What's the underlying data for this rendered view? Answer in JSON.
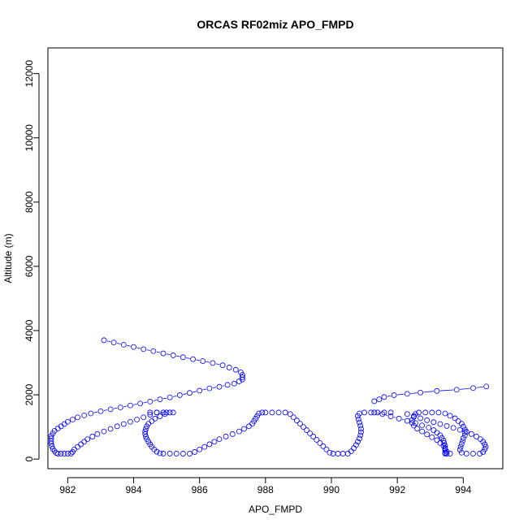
{
  "chart_data": {
    "type": "scatter",
    "title": "ORCAS RF02miz APO_FMPD",
    "xlabel": "APO_FMPD",
    "ylabel": "Altitude (m)",
    "xlim": [
      981.4,
      995.2
    ],
    "ylim": [
      -300,
      12800
    ],
    "x_ticks": [
      {
        "value": 982,
        "label": "982"
      },
      {
        "value": 984,
        "label": "984"
      },
      {
        "value": 986,
        "label": "986"
      },
      {
        "value": 988,
        "label": "988"
      },
      {
        "value": 990,
        "label": "990"
      },
      {
        "value": 992,
        "label": "992"
      },
      {
        "value": 994,
        "label": "994"
      }
    ],
    "y_ticks": [
      {
        "value": 0,
        "label": "0"
      },
      {
        "value": 2000,
        "label": "2000"
      },
      {
        "value": 4000,
        "label": "4000"
      },
      {
        "value": 6000,
        "label": "6000"
      },
      {
        "value": 8000,
        "label": "8000"
      },
      {
        "value": 10000,
        "label": "10000"
      },
      {
        "value": 12000,
        "label": "12000"
      }
    ],
    "grid": false,
    "marker": "open-circle",
    "color": "#0000ff",
    "series_segments": [
      {
        "points": [
          [
            983.1,
            3700
          ],
          [
            983.4,
            3630
          ],
          [
            983.7,
            3560
          ],
          [
            984.0,
            3490
          ],
          [
            984.3,
            3420
          ],
          [
            984.6,
            3360
          ],
          [
            984.9,
            3290
          ],
          [
            985.2,
            3230
          ],
          [
            985.5,
            3170
          ],
          [
            985.8,
            3110
          ],
          [
            986.1,
            3050
          ],
          [
            986.4,
            2990
          ],
          [
            986.7,
            2920
          ],
          [
            986.9,
            2850
          ],
          [
            987.1,
            2780
          ],
          [
            987.25,
            2700
          ],
          [
            987.3,
            2620
          ],
          [
            987.3,
            2550
          ],
          [
            987.3,
            2480
          ],
          [
            987.2,
            2420
          ],
          [
            987.05,
            2350
          ],
          [
            986.85,
            2310
          ],
          [
            986.6,
            2250
          ],
          [
            986.3,
            2200
          ],
          [
            986.0,
            2130
          ],
          [
            985.7,
            2060
          ],
          [
            985.4,
            1990
          ],
          [
            985.1,
            1920
          ],
          [
            984.8,
            1860
          ],
          [
            984.5,
            1790
          ],
          [
            984.2,
            1730
          ],
          [
            983.9,
            1670
          ],
          [
            983.6,
            1610
          ],
          [
            983.3,
            1550
          ],
          [
            983.0,
            1490
          ],
          [
            982.7,
            1420
          ],
          [
            982.5,
            1360
          ],
          [
            982.3,
            1300
          ],
          [
            982.15,
            1230
          ],
          [
            982.0,
            1160
          ],
          [
            981.9,
            1090
          ],
          [
            981.8,
            1020
          ],
          [
            981.7,
            950
          ],
          [
            981.6,
            880
          ],
          [
            981.55,
            800
          ],
          [
            981.5,
            720
          ],
          [
            981.5,
            640
          ],
          [
            981.5,
            560
          ],
          [
            981.5,
            480
          ],
          [
            981.52,
            400
          ],
          [
            981.55,
            320
          ],
          [
            981.6,
            250
          ],
          [
            981.65,
            190
          ],
          [
            981.7,
            170
          ],
          [
            981.8,
            170
          ],
          [
            981.9,
            170
          ],
          [
            982.0,
            170
          ],
          [
            982.1,
            170
          ],
          [
            982.15,
            220
          ],
          [
            982.2,
            300
          ],
          [
            982.3,
            380
          ],
          [
            982.4,
            460
          ],
          [
            982.5,
            540
          ],
          [
            982.6,
            620
          ],
          [
            982.75,
            700
          ],
          [
            982.9,
            780
          ],
          [
            983.1,
            860
          ],
          [
            983.3,
            940
          ],
          [
            983.5,
            1020
          ],
          [
            983.7,
            1090
          ],
          [
            983.9,
            1160
          ],
          [
            984.1,
            1230
          ],
          [
            984.3,
            1300
          ],
          [
            984.5,
            1380
          ],
          [
            984.7,
            1450
          ],
          [
            985.0,
            1450
          ],
          [
            985.2,
            1450
          ]
        ]
      },
      {
        "points": [
          [
            984.5,
            1450
          ],
          [
            984.7,
            1450
          ],
          [
            984.9,
            1450
          ],
          [
            985.1,
            1450
          ],
          [
            984.95,
            1400
          ],
          [
            984.8,
            1330
          ],
          [
            984.65,
            1260
          ],
          [
            984.55,
            1180
          ],
          [
            984.45,
            1100
          ],
          [
            984.4,
            1020
          ],
          [
            984.37,
            940
          ],
          [
            984.35,
            860
          ],
          [
            984.35,
            780
          ],
          [
            984.37,
            700
          ],
          [
            984.4,
            620
          ],
          [
            984.45,
            540
          ],
          [
            984.5,
            460
          ],
          [
            984.55,
            380
          ],
          [
            984.62,
            300
          ],
          [
            984.7,
            230
          ],
          [
            984.8,
            180
          ],
          [
            984.9,
            170
          ],
          [
            985.1,
            170
          ],
          [
            985.3,
            170
          ],
          [
            985.5,
            170
          ],
          [
            985.7,
            170
          ],
          [
            985.85,
            220
          ],
          [
            986.0,
            300
          ],
          [
            986.15,
            380
          ],
          [
            986.3,
            460
          ],
          [
            986.45,
            540
          ],
          [
            986.6,
            620
          ],
          [
            986.8,
            700
          ],
          [
            987.0,
            780
          ],
          [
            987.2,
            860
          ],
          [
            987.35,
            940
          ],
          [
            987.5,
            1020
          ],
          [
            987.6,
            1100
          ],
          [
            987.65,
            1180
          ],
          [
            987.7,
            1260
          ],
          [
            987.75,
            1340
          ],
          [
            987.8,
            1420
          ],
          [
            987.9,
            1450
          ],
          [
            988.0,
            1450
          ],
          [
            988.2,
            1450
          ],
          [
            988.4,
            1450
          ],
          [
            988.6,
            1450
          ],
          [
            988.75,
            1400
          ],
          [
            988.85,
            1300
          ],
          [
            988.95,
            1200
          ],
          [
            989.05,
            1100
          ],
          [
            989.15,
            1000
          ],
          [
            989.25,
            900
          ],
          [
            989.35,
            800
          ],
          [
            989.45,
            700
          ],
          [
            989.55,
            600
          ],
          [
            989.65,
            500
          ],
          [
            989.75,
            400
          ],
          [
            989.85,
            300
          ],
          [
            989.95,
            200
          ],
          [
            990.05,
            170
          ],
          [
            990.2,
            170
          ],
          [
            990.35,
            170
          ],
          [
            990.5,
            170
          ],
          [
            990.6,
            240
          ],
          [
            990.68,
            340
          ],
          [
            990.75,
            440
          ],
          [
            990.8,
            540
          ],
          [
            990.85,
            640
          ],
          [
            990.88,
            740
          ],
          [
            990.9,
            840
          ],
          [
            990.9,
            940
          ],
          [
            990.88,
            1040
          ],
          [
            990.85,
            1140
          ],
          [
            990.82,
            1240
          ],
          [
            990.8,
            1340
          ],
          [
            990.85,
            1420
          ],
          [
            991.0,
            1450
          ],
          [
            991.2,
            1450
          ],
          [
            991.4,
            1450
          ],
          [
            991.6,
            1450
          ],
          [
            991.8,
            1450
          ]
        ]
      },
      {
        "points": [
          [
            991.3,
            1800
          ],
          [
            991.45,
            1860
          ],
          [
            991.6,
            1930
          ],
          [
            991.9,
            1990
          ],
          [
            992.3,
            2030
          ],
          [
            992.7,
            2070
          ],
          [
            993.2,
            2120
          ],
          [
            993.8,
            2160
          ],
          [
            994.3,
            2210
          ],
          [
            994.7,
            2260
          ]
        ]
      },
      {
        "points": [
          [
            991.3,
            1450
          ],
          [
            991.55,
            1400
          ],
          [
            991.8,
            1330
          ],
          [
            992.05,
            1260
          ],
          [
            992.3,
            1190
          ],
          [
            992.55,
            1120
          ],
          [
            992.75,
            1050
          ],
          [
            992.95,
            980
          ],
          [
            993.1,
            900
          ],
          [
            993.2,
            820
          ],
          [
            993.3,
            740
          ],
          [
            993.35,
            660
          ],
          [
            993.4,
            580
          ],
          [
            993.42,
            500
          ],
          [
            993.45,
            420
          ],
          [
            993.45,
            340
          ],
          [
            993.45,
            260
          ],
          [
            993.45,
            190
          ],
          [
            993.45,
            170
          ],
          [
            993.5,
            170
          ],
          [
            993.6,
            170
          ],
          [
            993.5,
            230
          ],
          [
            993.45,
            320
          ],
          [
            993.4,
            410
          ],
          [
            993.3,
            500
          ],
          [
            993.2,
            590
          ],
          [
            993.05,
            680
          ],
          [
            992.9,
            770
          ],
          [
            992.75,
            860
          ],
          [
            992.6,
            950
          ],
          [
            992.5,
            1040
          ],
          [
            992.45,
            1130
          ],
          [
            992.45,
            1220
          ],
          [
            992.5,
            1310
          ],
          [
            992.55,
            1400
          ],
          [
            992.65,
            1450
          ],
          [
            992.85,
            1450
          ],
          [
            993.05,
            1450
          ],
          [
            993.25,
            1450
          ],
          [
            993.45,
            1420
          ],
          [
            993.6,
            1350
          ],
          [
            993.75,
            1270
          ],
          [
            993.85,
            1180
          ],
          [
            993.95,
            1100
          ],
          [
            994.0,
            1010
          ],
          [
            994.05,
            920
          ],
          [
            994.05,
            830
          ],
          [
            994.05,
            740
          ],
          [
            994.0,
            650
          ],
          [
            993.98,
            560
          ],
          [
            993.95,
            470
          ],
          [
            993.92,
            380
          ],
          [
            993.9,
            290
          ],
          [
            993.95,
            200
          ],
          [
            994.1,
            170
          ],
          [
            994.3,
            170
          ],
          [
            994.5,
            170
          ],
          [
            994.6,
            220
          ],
          [
            994.65,
            300
          ],
          [
            994.68,
            380
          ],
          [
            994.65,
            460
          ],
          [
            994.6,
            540
          ],
          [
            994.52,
            620
          ],
          [
            994.4,
            700
          ],
          [
            994.25,
            780
          ],
          [
            994.1,
            850
          ],
          [
            993.9,
            910
          ],
          [
            993.7,
            970
          ],
          [
            993.5,
            1030
          ],
          [
            993.3,
            1090
          ],
          [
            993.1,
            1150
          ],
          [
            992.9,
            1210
          ],
          [
            992.7,
            1270
          ],
          [
            992.5,
            1340
          ],
          [
            992.3,
            1400
          ]
        ]
      }
    ]
  }
}
